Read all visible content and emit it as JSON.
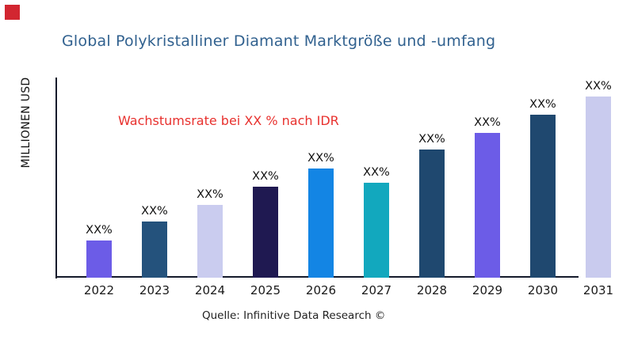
{
  "header": {
    "brand_mark_color": "#D22630"
  },
  "colors": {
    "title": "#31618F",
    "annotation": "#E8312E",
    "axis": "#141A2B",
    "text": "#111111"
  },
  "chart_data": {
    "type": "bar",
    "title": "Global Polykristalliner Diamant Marktgröße und -umfang",
    "ylabel": "MILLIONEN USD",
    "xlabel": "",
    "annotation": "Wachstumsrate bei XX % nach IDR",
    "source": "Quelle: Infinitive Data Research ©",
    "grid": false,
    "legend": false,
    "y_tick_labels": [],
    "categories": [
      "2022",
      "2023",
      "2024",
      "2025",
      "2026",
      "2027",
      "2028",
      "2029",
      "2030",
      "2031"
    ],
    "bar_labels": [
      "XX%",
      "XX%",
      "XX%",
      "XX%",
      "XX%",
      "XX%",
      "XX%",
      "XX%",
      "XX%",
      "XX%"
    ],
    "relative_heights": [
      47,
      71,
      92,
      115,
      138,
      120,
      162,
      183,
      206,
      229
    ],
    "bar_colors": [
      "#6C5CE7",
      "#24527C",
      "#CACCEF",
      "#1F1951",
      "#1385E4",
      "#12A8BE",
      "#1F486F",
      "#6C5CE7",
      "#1F486F",
      "#C9CBEE"
    ]
  }
}
